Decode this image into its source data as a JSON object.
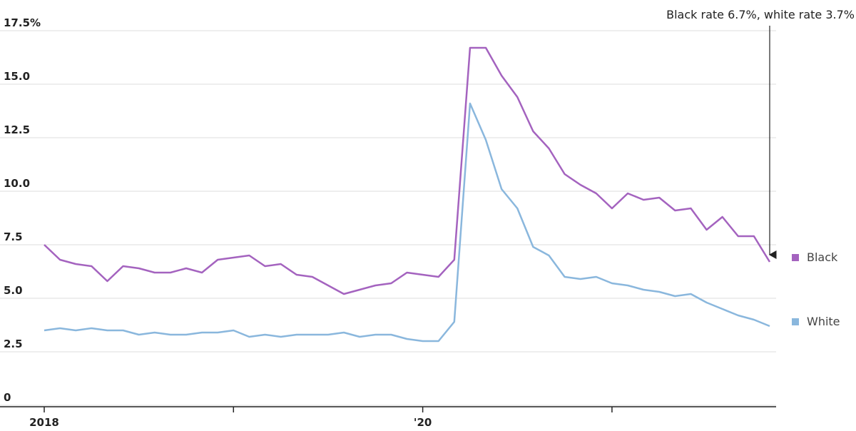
{
  "chart_data": {
    "type": "line",
    "annotation": "Black rate 6.7%, white rate 3.7%",
    "categories": [
      "2018",
      null,
      null,
      null,
      null,
      null,
      null,
      null,
      null,
      null,
      null,
      null,
      null,
      null,
      null,
      null,
      null,
      null,
      null,
      null,
      null,
      null,
      null,
      null,
      "'20",
      null,
      null,
      null,
      null,
      null,
      null,
      null,
      null,
      null,
      null,
      null,
      null,
      null,
      null,
      null,
      null,
      null,
      null,
      null,
      null,
      null,
      null
    ],
    "series": [
      {
        "name": "Black",
        "color": "#a463bf",
        "values": [
          7.5,
          6.8,
          6.6,
          6.5,
          5.8,
          6.5,
          6.4,
          6.2,
          6.2,
          6.4,
          6.2,
          6.8,
          6.9,
          7.0,
          6.5,
          6.6,
          6.1,
          6.0,
          5.6,
          5.2,
          5.4,
          5.6,
          5.7,
          6.2,
          6.1,
          6.0,
          6.8,
          16.7,
          16.7,
          15.4,
          14.4,
          12.8,
          12.0,
          10.8,
          10.3,
          9.9,
          9.2,
          9.9,
          9.6,
          9.7,
          9.1,
          9.2,
          8.2,
          8.8,
          7.9,
          7.9,
          6.7
        ]
      },
      {
        "name": "White",
        "color": "#8ab7dd",
        "values": [
          3.5,
          3.6,
          3.5,
          3.6,
          3.5,
          3.5,
          3.3,
          3.4,
          3.3,
          3.3,
          3.4,
          3.4,
          3.5,
          3.2,
          3.3,
          3.2,
          3.3,
          3.3,
          3.3,
          3.4,
          3.2,
          3.3,
          3.3,
          3.1,
          3.0,
          3.0,
          3.9,
          14.1,
          12.4,
          10.1,
          9.2,
          7.4,
          7.0,
          6.0,
          5.9,
          6.0,
          5.7,
          5.6,
          5.4,
          5.3,
          5.1,
          5.2,
          4.8,
          4.5,
          4.2,
          4.0,
          3.7
        ]
      }
    ],
    "ylim": [
      0,
      17.5
    ],
    "yticks": [
      0,
      2.5,
      {
        "value": 5,
        "label": "5.0"
      },
      7.5,
      {
        "value": 10,
        "label": "10.0"
      },
      12.5,
      {
        "value": 15,
        "label": "15.0"
      },
      {
        "value": 17.5,
        "label": "17.5%"
      }
    ],
    "grid": true
  }
}
